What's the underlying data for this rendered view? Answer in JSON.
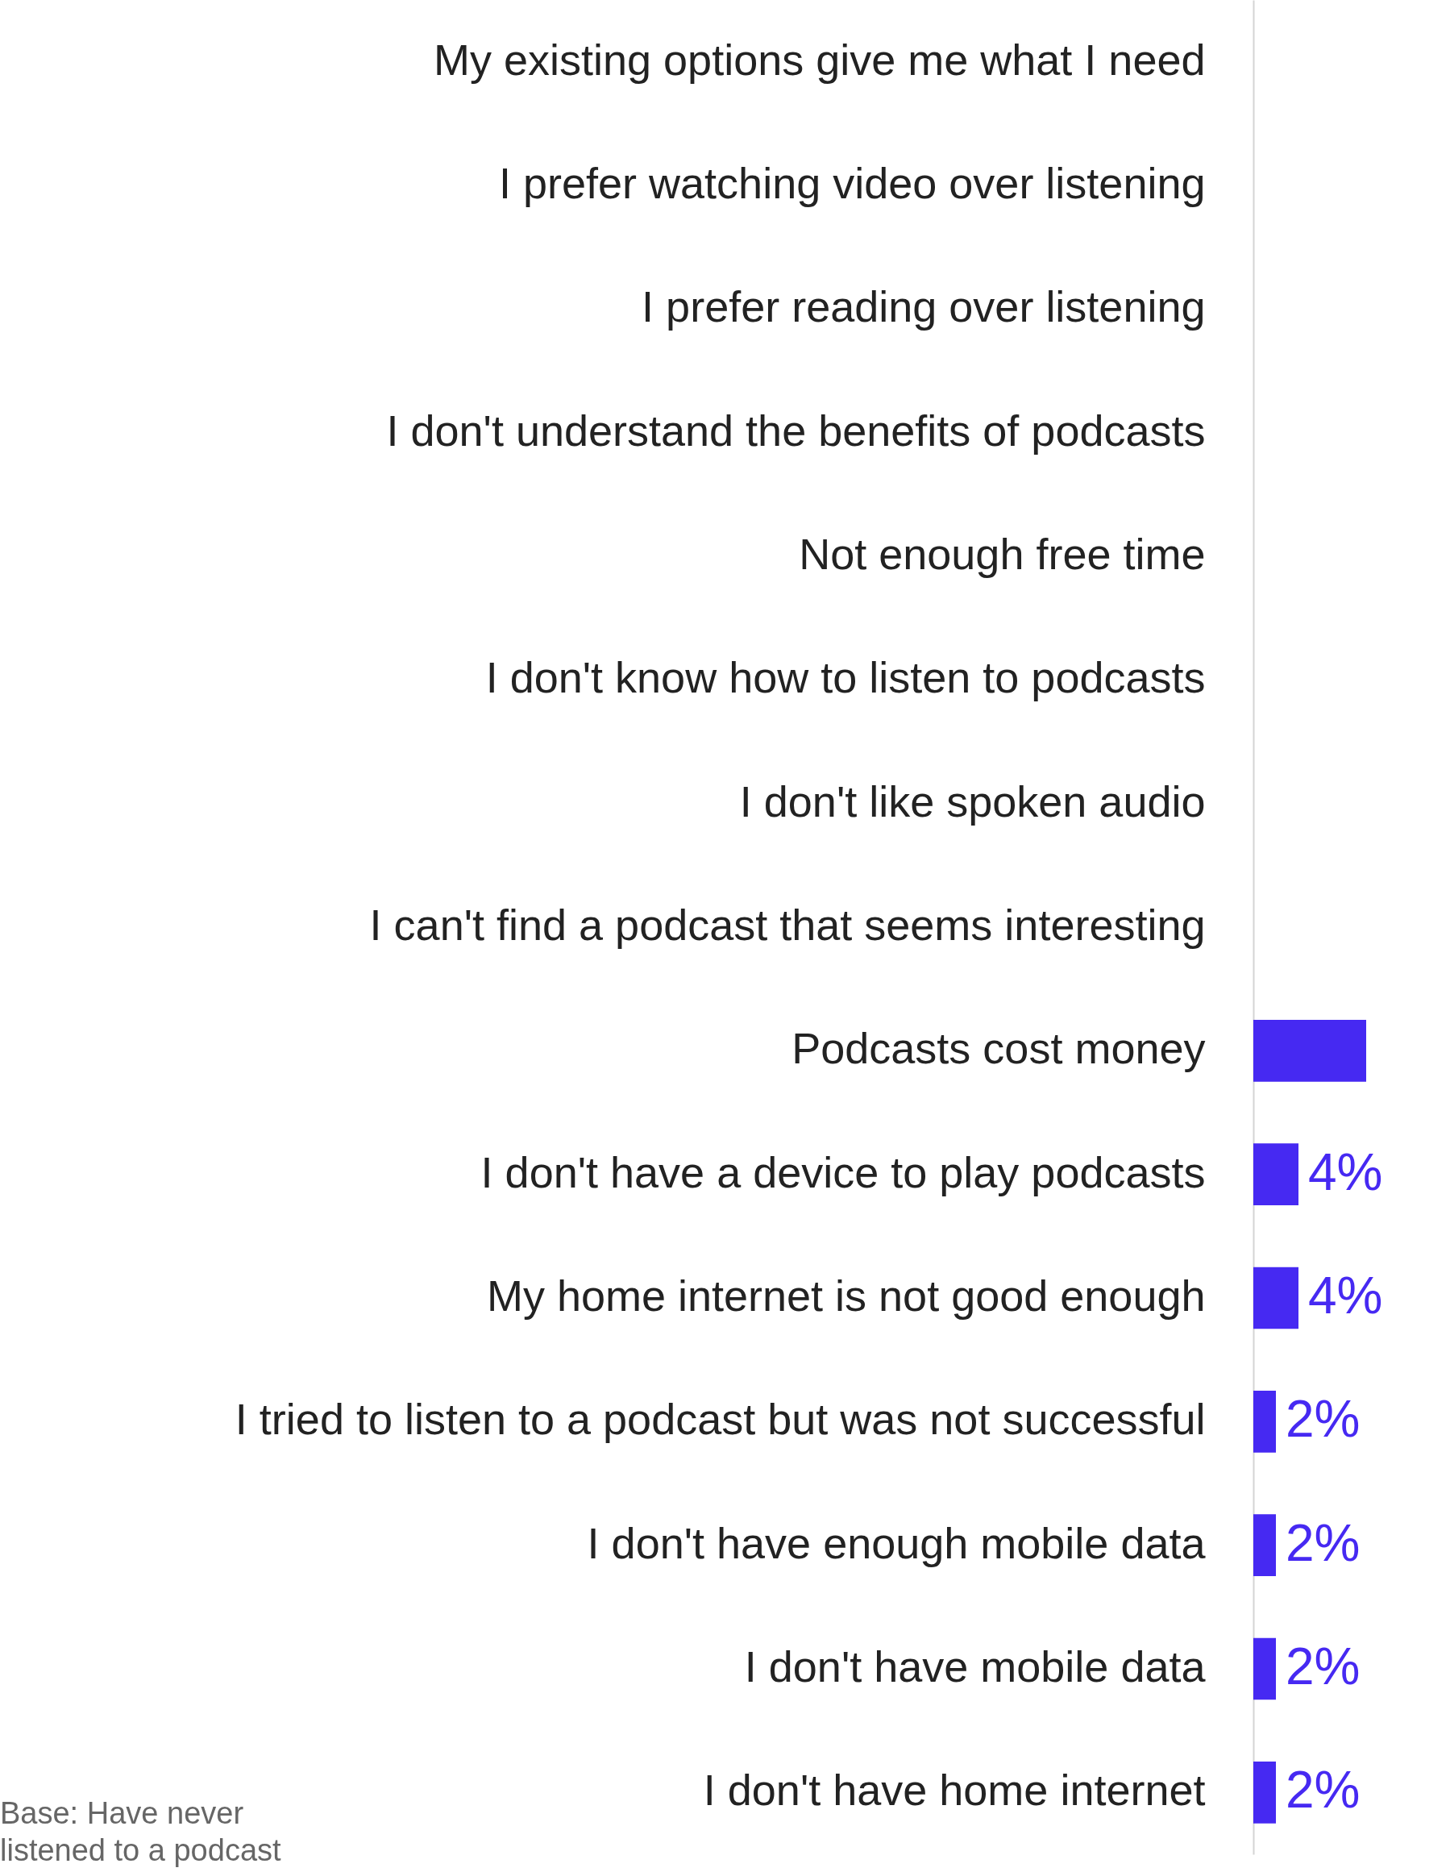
{
  "chart_data": {
    "type": "bar",
    "orientation": "horizontal",
    "categories": [
      "My existing options give me what I need",
      "I prefer watching video over listening",
      "I prefer reading over listening",
      "I don't understand the benefits of podcasts",
      "Not enough free time",
      "I don't know how to listen to podcasts",
      "I don't like spoken audio",
      "I can't find a podcast that seems interesting",
      "Podcasts cost money",
      "I don't have a device to play podcasts",
      "My home internet is not good enough",
      "I tried to listen to a podcast but was not successful",
      "I don't have enough mobile data",
      "I don't have mobile data",
      "I don't have home internet"
    ],
    "values": [
      null,
      null,
      null,
      null,
      null,
      null,
      null,
      null,
      10,
      4,
      4,
      2,
      2,
      2,
      2
    ],
    "colors": [
      "#f25118",
      "#4629f2",
      "#4629f2",
      "#4629f2",
      "#4629f2",
      "#4629f2",
      "#4629f2",
      "#f25118",
      "#4629f2",
      "#4629f2",
      "#4629f2",
      "#4629f2",
      "#4629f2",
      "#4629f2",
      "#4629f2"
    ],
    "value_labels": [
      null,
      null,
      null,
      null,
      null,
      null,
      null,
      null,
      null,
      "4%",
      "4%",
      "2%",
      "2%",
      "2%",
      "2%"
    ],
    "tick_labels": "y",
    "grid": false,
    "annotations": [
      "Base: Have never listened to a podcast"
    ]
  }
}
